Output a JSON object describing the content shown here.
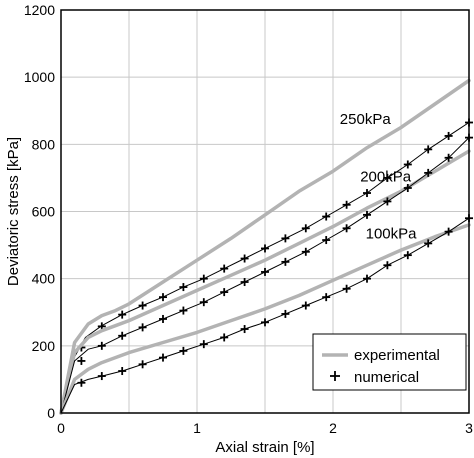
{
  "chart_data": {
    "type": "line",
    "xlabel": "Axial strain [%]",
    "ylabel": "Deviatoric stress [kPa]",
    "xlim": [
      0,
      3
    ],
    "ylim": [
      0,
      1200
    ],
    "xticks": [
      0,
      1,
      2,
      3
    ],
    "yticks": [
      0,
      200,
      400,
      600,
      800,
      1000,
      1200
    ],
    "grid": true,
    "legend_position": "bottom-right",
    "legend": [
      {
        "label": "experimental",
        "style": "thick-gray-line"
      },
      {
        "label": "numerical",
        "style": "plus-marker"
      }
    ],
    "annotations": [
      "250kPa",
      "200kPa",
      "100kPa"
    ],
    "colors": {
      "experimental": "#b3b3b3",
      "numerical": "#000000",
      "grid": "#c8c8c8"
    },
    "series": [
      {
        "name": "250kPa",
        "experimental": {
          "x": [
            0,
            0.1,
            0.2,
            0.3,
            0.4,
            0.5,
            0.75,
            1.0,
            1.25,
            1.5,
            1.75,
            2.0,
            2.25,
            2.5,
            2.75,
            3.0
          ],
          "y": [
            0,
            210,
            265,
            290,
            305,
            325,
            390,
            455,
            520,
            590,
            660,
            720,
            790,
            850,
            920,
            990
          ]
        },
        "numerical": {
          "x": [
            0,
            0.09,
            0.18,
            0.3,
            0.45,
            0.6,
            0.75,
            0.9,
            1.05,
            1.2,
            1.35,
            1.5,
            1.65,
            1.8,
            1.95,
            2.1,
            2.25,
            2.4,
            2.55,
            2.7,
            2.85,
            3.0
          ],
          "y": [
            0,
            160,
            225,
            260,
            293,
            320,
            345,
            375,
            400,
            430,
            460,
            490,
            520,
            550,
            585,
            620,
            655,
            700,
            740,
            785,
            825,
            865
          ]
        },
        "numerical_markers": {
          "x": [
            0.15,
            0.3,
            0.45,
            0.6,
            0.75,
            0.9,
            1.05,
            1.2,
            1.35,
            1.5,
            1.65,
            1.8,
            1.95,
            2.1,
            2.25,
            2.4,
            2.55,
            2.7,
            2.85,
            3.0
          ],
          "y": [
            195,
            258,
            293,
            320,
            345,
            375,
            400,
            430,
            460,
            490,
            520,
            550,
            585,
            620,
            655,
            700,
            740,
            785,
            825,
            865
          ]
        }
      },
      {
        "name": "200kPa",
        "experimental": {
          "x": [
            0,
            0.1,
            0.2,
            0.3,
            0.4,
            0.5,
            0.75,
            1.0,
            1.25,
            1.5,
            1.75,
            2.0,
            2.25,
            2.5,
            2.75,
            3.0
          ],
          "y": [
            0,
            180,
            225,
            245,
            260,
            275,
            320,
            365,
            410,
            455,
            505,
            555,
            610,
            660,
            720,
            780
          ]
        },
        "numerical": {
          "x": [
            0,
            0.1,
            0.2,
            0.3,
            0.45,
            0.6,
            0.75,
            0.9,
            1.05,
            1.2,
            1.35,
            1.5,
            1.65,
            1.8,
            1.95,
            2.1,
            2.25,
            2.4,
            2.55,
            2.7,
            2.85,
            3.0
          ],
          "y": [
            0,
            155,
            190,
            200,
            230,
            255,
            280,
            305,
            330,
            360,
            390,
            420,
            450,
            480,
            515,
            550,
            590,
            630,
            670,
            715,
            760,
            820
          ]
        },
        "numerical_markers": {
          "x": [
            0.15,
            0.3,
            0.45,
            0.6,
            0.75,
            0.9,
            1.05,
            1.2,
            1.35,
            1.5,
            1.65,
            1.8,
            1.95,
            2.1,
            2.25,
            2.4,
            2.55,
            2.7,
            2.85,
            3.0
          ],
          "y": [
            155,
            200,
            230,
            255,
            280,
            305,
            330,
            360,
            390,
            420,
            450,
            480,
            515,
            550,
            590,
            630,
            670,
            715,
            760,
            820
          ]
        }
      },
      {
        "name": "100kPa",
        "experimental": {
          "x": [
            0,
            0.1,
            0.2,
            0.3,
            0.4,
            0.5,
            0.75,
            1.0,
            1.25,
            1.5,
            1.75,
            2.0,
            2.25,
            2.5,
            2.75,
            3.0
          ],
          "y": [
            0,
            100,
            130,
            150,
            165,
            180,
            210,
            240,
            275,
            310,
            350,
            395,
            440,
            485,
            525,
            560
          ]
        },
        "numerical": {
          "x": [
            0,
            0.1,
            0.2,
            0.3,
            0.45,
            0.6,
            0.75,
            0.9,
            1.05,
            1.2,
            1.35,
            1.5,
            1.65,
            1.8,
            1.95,
            2.1,
            2.25,
            2.4,
            2.55,
            2.7,
            2.85,
            3.0
          ],
          "y": [
            0,
            85,
            100,
            110,
            125,
            145,
            165,
            185,
            205,
            225,
            250,
            270,
            295,
            320,
            345,
            370,
            400,
            440,
            470,
            505,
            540,
            580
          ]
        },
        "numerical_markers": {
          "x": [
            0.15,
            0.3,
            0.45,
            0.6,
            0.75,
            0.9,
            1.05,
            1.2,
            1.35,
            1.5,
            1.65,
            1.8,
            1.95,
            2.1,
            2.25,
            2.4,
            2.55,
            2.7,
            2.85,
            3.0
          ],
          "y": [
            90,
            110,
            125,
            145,
            165,
            185,
            205,
            225,
            250,
            270,
            295,
            320,
            345,
            370,
            400,
            440,
            470,
            505,
            540,
            580
          ]
        }
      }
    ]
  }
}
